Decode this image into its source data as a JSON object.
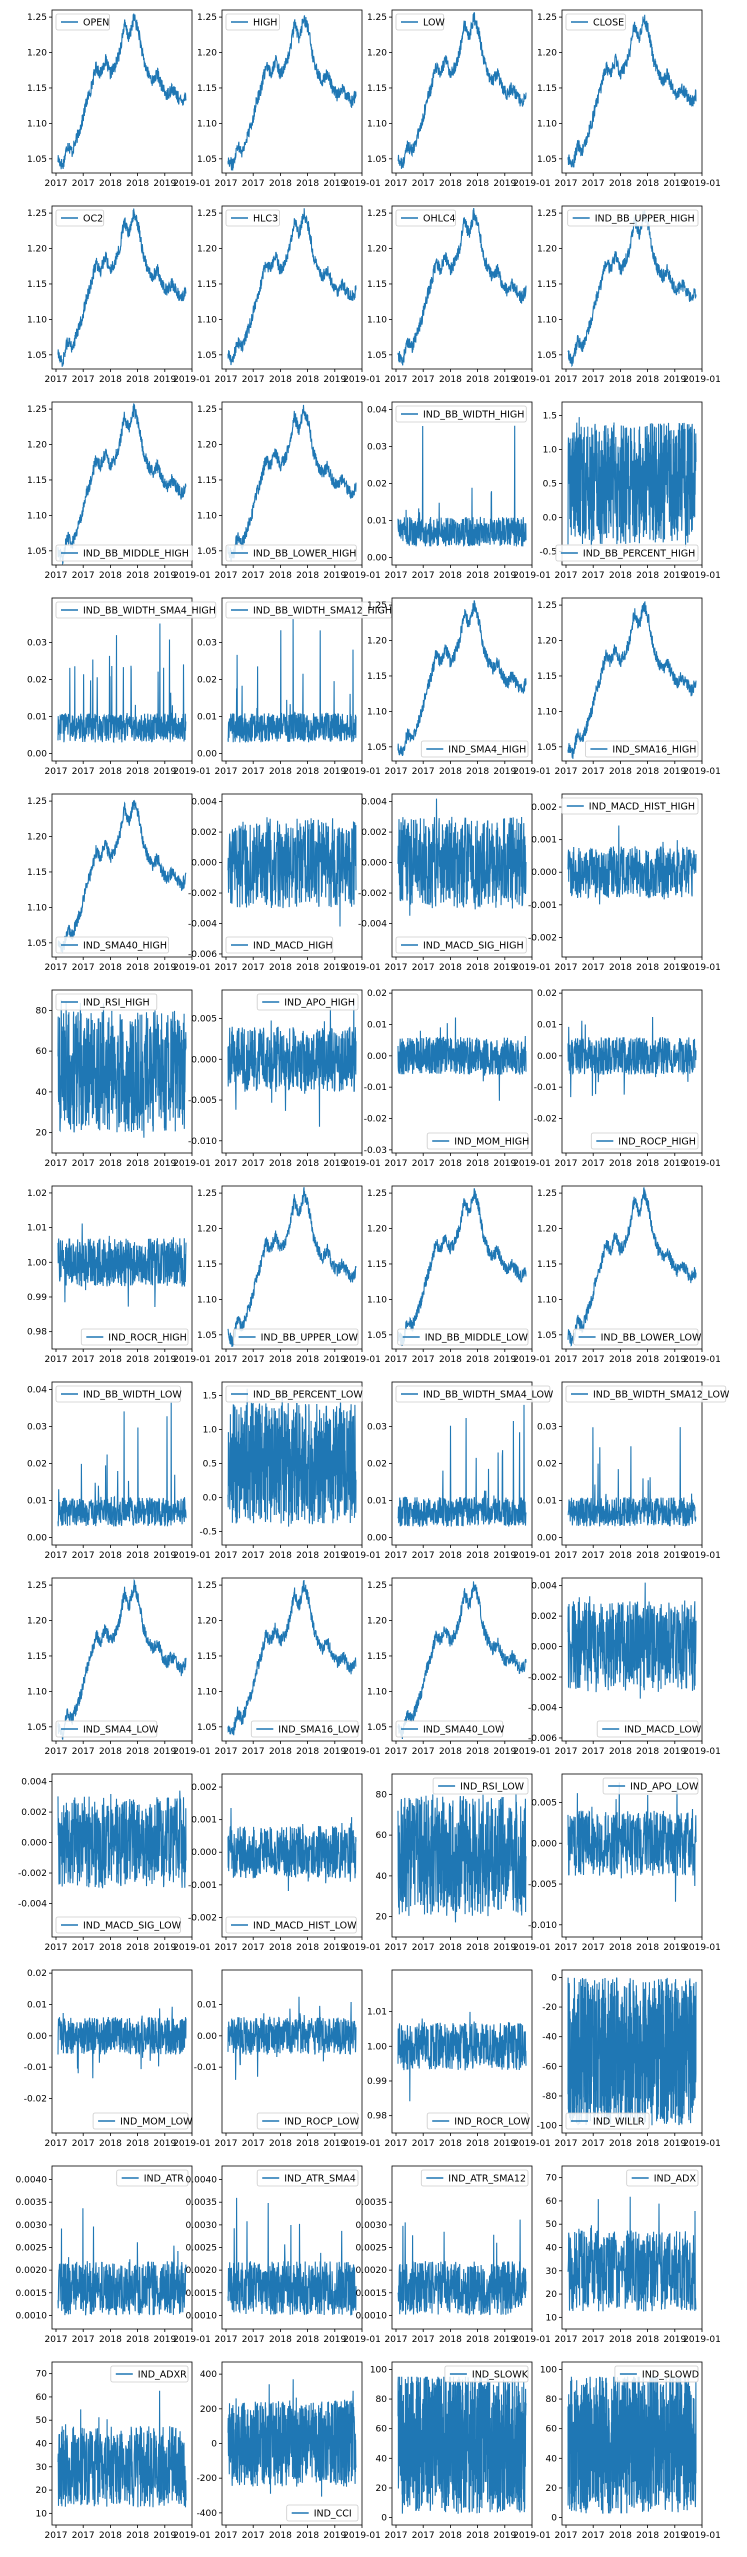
{
  "figure": {
    "grid_rows": 13,
    "grid_cols": 4,
    "line_color": "#1f77b4"
  },
  "chart_data": [
    {
      "type": "line",
      "legend": "OPEN",
      "kind": "price",
      "legend_pos": "upper-left",
      "y_ticks": [
        "1.05",
        "1.10",
        "1.15",
        "1.20",
        "1.25"
      ],
      "x_ticks": [
        "2017",
        "2017",
        "2018",
        "2018",
        "2019",
        "2019-01"
      ]
    },
    {
      "type": "line",
      "legend": "HIGH",
      "kind": "price",
      "legend_pos": "upper-left",
      "y_ticks": [
        "1.05",
        "1.10",
        "1.15",
        "1.20",
        "1.25"
      ],
      "x_ticks": [
        "2017",
        "2017",
        "2018",
        "2018",
        "2019",
        "2019-01"
      ]
    },
    {
      "type": "line",
      "legend": "LOW",
      "kind": "price",
      "legend_pos": "upper-left",
      "y_ticks": [
        "1.05",
        "1.10",
        "1.15",
        "1.20",
        "1.25"
      ],
      "x_ticks": [
        "2017",
        "2017",
        "2018",
        "2018",
        "2019",
        "2019-01"
      ]
    },
    {
      "type": "line",
      "legend": "CLOSE",
      "kind": "price",
      "legend_pos": "upper-left",
      "y_ticks": [
        "1.05",
        "1.10",
        "1.15",
        "1.20",
        "1.25"
      ],
      "x_ticks": [
        "2017",
        "2017",
        "2018",
        "2018",
        "2019",
        "2019-01"
      ]
    },
    {
      "type": "line",
      "legend": "OC2",
      "kind": "price",
      "legend_pos": "upper-left",
      "y_ticks": [
        "1.05",
        "1.10",
        "1.15",
        "1.20",
        "1.25"
      ],
      "x_ticks": [
        "2017",
        "2017",
        "2018",
        "2018",
        "2019",
        "2019-01"
      ]
    },
    {
      "type": "line",
      "legend": "HLC3",
      "kind": "price",
      "legend_pos": "upper-left",
      "y_ticks": [
        "1.05",
        "1.10",
        "1.15",
        "1.20",
        "1.25"
      ],
      "x_ticks": [
        "2017",
        "2017",
        "2018",
        "2018",
        "2019",
        "2019-01"
      ]
    },
    {
      "type": "line",
      "legend": "OHLC4",
      "kind": "price",
      "legend_pos": "upper-left",
      "y_ticks": [
        "1.05",
        "1.10",
        "1.15",
        "1.20",
        "1.25"
      ],
      "x_ticks": [
        "2017",
        "2017",
        "2018",
        "2018",
        "2019",
        "2019-01"
      ]
    },
    {
      "type": "line",
      "legend": "IND_BB_UPPER_HIGH",
      "kind": "price",
      "legend_pos": "upper-right",
      "y_ticks": [
        "1.05",
        "1.10",
        "1.15",
        "1.20",
        "1.25"
      ],
      "x_ticks": [
        "2017",
        "2017",
        "2018",
        "2018",
        "2019",
        "2019-01"
      ]
    },
    {
      "type": "line",
      "legend": "IND_BB_MIDDLE_HIGH",
      "kind": "price",
      "legend_pos": "lower-left",
      "y_ticks": [
        "1.05",
        "1.10",
        "1.15",
        "1.20",
        "1.25"
      ],
      "x_ticks": [
        "2017",
        "2017",
        "2018",
        "2018",
        "2019",
        "2019-01"
      ]
    },
    {
      "type": "line",
      "legend": "IND_BB_LOWER_HIGH",
      "kind": "price",
      "legend_pos": "lower-left",
      "y_ticks": [
        "1.05",
        "1.10",
        "1.15",
        "1.20",
        "1.25"
      ],
      "x_ticks": [
        "2017",
        "2017",
        "2018",
        "2018",
        "2019",
        "2019-01"
      ]
    },
    {
      "type": "line",
      "legend": "IND_BB_WIDTH_HIGH",
      "kind": "width",
      "legend_pos": "upper-left",
      "y_ticks": [
        "0.00",
        "0.01",
        "0.02",
        "0.03",
        "0.04"
      ],
      "x_ticks": [
        "2017",
        "2017",
        "2018",
        "2018",
        "2019",
        "2019-01"
      ]
    },
    {
      "type": "line",
      "legend": "IND_BB_PERCENT_HIGH",
      "kind": "percent",
      "legend_pos": "lower-right",
      "y_ticks": [
        "-0.5",
        "0.0",
        "0.5",
        "1.0",
        "1.5"
      ],
      "x_ticks": [
        "2017",
        "2017",
        "2018",
        "2018",
        "2019",
        "2019-01"
      ]
    },
    {
      "type": "line",
      "legend": "IND_BB_WIDTH_SMA4_HIGH",
      "kind": "width",
      "legend_pos": "upper-left",
      "y_ticks": [
        "0.00",
        "0.01",
        "0.02",
        "0.03"
      ],
      "x_ticks": [
        "2017",
        "2017",
        "2018",
        "2018",
        "2019",
        "2019-01"
      ]
    },
    {
      "type": "line",
      "legend": "IND_BB_WIDTH_SMA12_HIGH",
      "kind": "width",
      "legend_pos": "upper-left",
      "y_ticks": [
        "0.00",
        "0.01",
        "0.02",
        "0.03"
      ],
      "x_ticks": [
        "2017",
        "2017",
        "2018",
        "2018",
        "2019",
        "2019-01"
      ]
    },
    {
      "type": "line",
      "legend": "IND_SMA4_HIGH",
      "kind": "price",
      "legend_pos": "lower-right",
      "y_ticks": [
        "1.05",
        "1.10",
        "1.15",
        "1.20",
        "1.25"
      ],
      "x_ticks": [
        "2017",
        "2017",
        "2018",
        "2018",
        "2019",
        "2019-01"
      ]
    },
    {
      "type": "line",
      "legend": "IND_SMA16_HIGH",
      "kind": "price",
      "legend_pos": "lower-right",
      "y_ticks": [
        "1.05",
        "1.10",
        "1.15",
        "1.20",
        "1.25"
      ],
      "x_ticks": [
        "2017",
        "2017",
        "2018",
        "2018",
        "2019",
        "2019-01"
      ]
    },
    {
      "type": "line",
      "legend": "IND_SMA40_HIGH",
      "kind": "price",
      "legend_pos": "lower-left",
      "y_ticks": [
        "1.05",
        "1.10",
        "1.15",
        "1.20",
        "1.25"
      ],
      "x_ticks": [
        "2017",
        "2017",
        "2018",
        "2018",
        "2019",
        "2019-01"
      ]
    },
    {
      "type": "line",
      "legend": "IND_MACD_HIGH",
      "kind": "macd",
      "legend_pos": "lower-left",
      "y_ticks": [
        "-0.006",
        "-0.004",
        "-0.002",
        "0.000",
        "0.002",
        "0.004"
      ],
      "x_ticks": [
        "2017",
        "2017",
        "2018",
        "2018",
        "2019",
        "2019-01"
      ]
    },
    {
      "type": "line",
      "legend": "IND_MACD_SIG_HIGH",
      "kind": "macd",
      "legend_pos": "lower-left",
      "y_ticks": [
        "-0.004",
        "-0.002",
        "0.000",
        "0.002",
        "0.004"
      ],
      "x_ticks": [
        "2017",
        "2017",
        "2018",
        "2018",
        "2019",
        "2019-01"
      ]
    },
    {
      "type": "line",
      "legend": "IND_MACD_HIST_HIGH",
      "kind": "hist",
      "legend_pos": "upper-right",
      "y_ticks": [
        "-0.002",
        "-0.001",
        "0.000",
        "0.001",
        "0.002"
      ],
      "x_ticks": [
        "2017",
        "2017",
        "2018",
        "2018",
        "2019",
        "2019-01"
      ]
    },
    {
      "type": "line",
      "legend": "IND_RSI_HIGH",
      "kind": "rsi",
      "legend_pos": "upper-left",
      "y_ticks": [
        "20",
        "40",
        "60",
        "80"
      ],
      "x_ticks": [
        "2017",
        "2017",
        "2018",
        "2018",
        "2019",
        "2019-01"
      ]
    },
    {
      "type": "line",
      "legend": "IND_APO_HIGH",
      "kind": "apo",
      "legend_pos": "upper-right",
      "y_ticks": [
        "-0.010",
        "-0.005",
        "0.000",
        "0.005"
      ],
      "x_ticks": [
        "2017",
        "2017",
        "2018",
        "2018",
        "2019",
        "2019-01"
      ]
    },
    {
      "type": "line",
      "legend": "IND_MOM_HIGH",
      "kind": "mom",
      "legend_pos": "lower-right",
      "y_ticks": [
        "-0.03",
        "-0.02",
        "-0.01",
        "0.00",
        "0.01",
        "0.02"
      ],
      "x_ticks": [
        "2017",
        "2017",
        "2018",
        "2018",
        "2019",
        "2019-01"
      ]
    },
    {
      "type": "line",
      "legend": "IND_ROCP_HIGH",
      "kind": "mom",
      "legend_pos": "lower-right",
      "y_ticks": [
        "-0.02",
        "-0.01",
        "0.00",
        "0.01",
        "0.02"
      ],
      "x_ticks": [
        "2017",
        "2017",
        "2018",
        "2018",
        "2019",
        "2019-01"
      ]
    },
    {
      "type": "line",
      "legend": "IND_ROCR_HIGH",
      "kind": "rocr",
      "legend_pos": "lower-right",
      "y_ticks": [
        "0.98",
        "0.99",
        "1.00",
        "1.01",
        "1.02"
      ],
      "x_ticks": [
        "2017",
        "2017",
        "2018",
        "2018",
        "2019",
        "2019-01"
      ]
    },
    {
      "type": "line",
      "legend": "IND_BB_UPPER_LOW",
      "kind": "price",
      "legend_pos": "lower-right",
      "y_ticks": [
        "1.05",
        "1.10",
        "1.15",
        "1.20",
        "1.25"
      ],
      "x_ticks": [
        "2017",
        "2017",
        "2018",
        "2018",
        "2019",
        "2019-01"
      ]
    },
    {
      "type": "line",
      "legend": "IND_BB_MIDDLE_LOW",
      "kind": "price",
      "legend_pos": "lower-right",
      "y_ticks": [
        "1.05",
        "1.10",
        "1.15",
        "1.20",
        "1.25"
      ],
      "x_ticks": [
        "2017",
        "2017",
        "2018",
        "2018",
        "2019",
        "2019-01"
      ]
    },
    {
      "type": "line",
      "legend": "IND_BB_LOWER_LOW",
      "kind": "price",
      "legend_pos": "lower-right",
      "y_ticks": [
        "1.05",
        "1.10",
        "1.15",
        "1.20",
        "1.25"
      ],
      "x_ticks": [
        "2017",
        "2017",
        "2018",
        "2018",
        "2019",
        "2019-01"
      ]
    },
    {
      "type": "line",
      "legend": "IND_BB_WIDTH_LOW",
      "kind": "width",
      "legend_pos": "upper-left",
      "y_ticks": [
        "0.00",
        "0.01",
        "0.02",
        "0.03",
        "0.04"
      ],
      "x_ticks": [
        "2017",
        "2017",
        "2018",
        "2018",
        "2019",
        "2019-01"
      ]
    },
    {
      "type": "line",
      "legend": "IND_BB_PERCENT_LOW",
      "kind": "percent",
      "legend_pos": "upper-left",
      "y_ticks": [
        "-0.5",
        "0.0",
        "0.5",
        "1.0",
        "1.5"
      ],
      "x_ticks": [
        "2017",
        "2017",
        "2018",
        "2018",
        "2019",
        "2019-01"
      ]
    },
    {
      "type": "line",
      "legend": "IND_BB_WIDTH_SMA4_LOW",
      "kind": "width",
      "legend_pos": "upper-left",
      "y_ticks": [
        "0.00",
        "0.01",
        "0.02",
        "0.03"
      ],
      "x_ticks": [
        "2017",
        "2017",
        "2018",
        "2018",
        "2019",
        "2019-01"
      ]
    },
    {
      "type": "line",
      "legend": "IND_BB_WIDTH_SMA12_LOW",
      "kind": "width",
      "legend_pos": "upper-left",
      "y_ticks": [
        "0.00",
        "0.01",
        "0.02",
        "0.03"
      ],
      "x_ticks": [
        "2017",
        "2017",
        "2018",
        "2018",
        "2019",
        "2019-01"
      ]
    },
    {
      "type": "line",
      "legend": "IND_SMA4_LOW",
      "kind": "price",
      "legend_pos": "lower-left",
      "y_ticks": [
        "1.05",
        "1.10",
        "1.15",
        "1.20",
        "1.25"
      ],
      "x_ticks": [
        "2017",
        "2017",
        "2018",
        "2018",
        "2019",
        "2019-01"
      ]
    },
    {
      "type": "line",
      "legend": "IND_SMA16_LOW",
      "kind": "price",
      "legend_pos": "lower-right",
      "y_ticks": [
        "1.05",
        "1.10",
        "1.15",
        "1.20",
        "1.25"
      ],
      "x_ticks": [
        "2017",
        "2017",
        "2018",
        "2018",
        "2019",
        "2019-01"
      ]
    },
    {
      "type": "line",
      "legend": "IND_SMA40_LOW",
      "kind": "price",
      "legend_pos": "lower-left",
      "y_ticks": [
        "1.05",
        "1.10",
        "1.15",
        "1.20",
        "1.25"
      ],
      "x_ticks": [
        "2017",
        "2017",
        "2018",
        "2018",
        "2019",
        "2019-01"
      ]
    },
    {
      "type": "line",
      "legend": "IND_MACD_LOW",
      "kind": "macd",
      "legend_pos": "lower-right",
      "y_ticks": [
        "-0.006",
        "-0.004",
        "-0.002",
        "0.000",
        "0.002",
        "0.004"
      ],
      "x_ticks": [
        "2017",
        "2017",
        "2018",
        "2018",
        "2019",
        "2019-01"
      ]
    },
    {
      "type": "line",
      "legend": "IND_MACD_SIG_LOW",
      "kind": "macd",
      "legend_pos": "lower-left",
      "y_ticks": [
        "-0.004",
        "-0.002",
        "0.000",
        "0.002",
        "0.004"
      ],
      "x_ticks": [
        "2017",
        "2017",
        "2018",
        "2018",
        "2019",
        "2019-01"
      ]
    },
    {
      "type": "line",
      "legend": "IND_MACD_HIST_LOW",
      "kind": "hist",
      "legend_pos": "lower-left",
      "y_ticks": [
        "-0.002",
        "-0.001",
        "0.000",
        "0.001",
        "0.002"
      ],
      "x_ticks": [
        "2017",
        "2017",
        "2018",
        "2018",
        "2019",
        "2019-01"
      ]
    },
    {
      "type": "line",
      "legend": "IND_RSI_LOW",
      "kind": "rsi",
      "legend_pos": "upper-right",
      "y_ticks": [
        "20",
        "40",
        "60",
        "80"
      ],
      "x_ticks": [
        "2017",
        "2017",
        "2018",
        "2018",
        "2019",
        "2019-01"
      ]
    },
    {
      "type": "line",
      "legend": "IND_APO_LOW",
      "kind": "apo",
      "legend_pos": "upper-right",
      "y_ticks": [
        "-0.010",
        "-0.005",
        "0.000",
        "0.005"
      ],
      "x_ticks": [
        "2017",
        "2017",
        "2018",
        "2018",
        "2019",
        "2019-01"
      ]
    },
    {
      "type": "line",
      "legend": "IND_MOM_LOW",
      "kind": "mom",
      "legend_pos": "lower-right",
      "y_ticks": [
        "-0.02",
        "-0.01",
        "0.00",
        "0.01",
        "0.02"
      ],
      "x_ticks": [
        "2017",
        "2017",
        "2018",
        "2018",
        "2019",
        "2019-01"
      ]
    },
    {
      "type": "line",
      "legend": "IND_ROCP_LOW",
      "kind": "mom",
      "legend_pos": "lower-right",
      "y_ticks": [
        "-0.01",
        "0.00",
        "0.01"
      ],
      "x_ticks": [
        "2017",
        "2017",
        "2018",
        "2018",
        "2019",
        "2019-01"
      ]
    },
    {
      "type": "line",
      "legend": "IND_ROCR_LOW",
      "kind": "rocr",
      "legend_pos": "lower-right",
      "y_ticks": [
        "0.98",
        "0.99",
        "1.00",
        "1.01"
      ],
      "x_ticks": [
        "2017",
        "2017",
        "2018",
        "2018",
        "2019",
        "2019-01"
      ]
    },
    {
      "type": "line",
      "legend": "IND_WILLR",
      "kind": "willr",
      "legend_pos": "lower-left",
      "y_ticks": [
        "-100",
        "-80",
        "-60",
        "-40",
        "-20",
        "0"
      ],
      "x_ticks": [
        "2017",
        "2017",
        "2018",
        "2018",
        "2019",
        "2019-01"
      ]
    },
    {
      "type": "line",
      "legend": "IND_ATR",
      "kind": "atr",
      "legend_pos": "upper-right",
      "y_ticks": [
        "0.0010",
        "0.0015",
        "0.0020",
        "0.0025",
        "0.0030",
        "0.0035",
        "0.0040"
      ],
      "x_ticks": [
        "2017",
        "2017",
        "2018",
        "2018",
        "2019",
        "2019-01"
      ]
    },
    {
      "type": "line",
      "legend": "IND_ATR_SMA4",
      "kind": "atr",
      "legend_pos": "upper-right",
      "y_ticks": [
        "0.0010",
        "0.0015",
        "0.0020",
        "0.0025",
        "0.0030",
        "0.0035",
        "0.0040"
      ],
      "x_ticks": [
        "2017",
        "2017",
        "2018",
        "2018",
        "2019",
        "2019-01"
      ]
    },
    {
      "type": "line",
      "legend": "IND_ATR_SMA12",
      "kind": "atr",
      "legend_pos": "upper-right",
      "y_ticks": [
        "0.0010",
        "0.0015",
        "0.0020",
        "0.0025",
        "0.0030",
        "0.0035"
      ],
      "x_ticks": [
        "2017",
        "2017",
        "2018",
        "2018",
        "2019",
        "2019-01"
      ]
    },
    {
      "type": "line",
      "legend": "IND_ADX",
      "kind": "adx",
      "legend_pos": "upper-right",
      "y_ticks": [
        "10",
        "20",
        "30",
        "40",
        "50",
        "60",
        "70"
      ],
      "x_ticks": [
        "2017",
        "2017",
        "2018",
        "2018",
        "2019",
        "2019-01"
      ]
    },
    {
      "type": "line",
      "legend": "IND_ADXR",
      "kind": "adx",
      "legend_pos": "upper-right",
      "y_ticks": [
        "10",
        "20",
        "30",
        "40",
        "50",
        "60",
        "70"
      ],
      "x_ticks": [
        "2017",
        "2017",
        "2018",
        "2018",
        "2019",
        "2019-01"
      ]
    },
    {
      "type": "line",
      "legend": "IND_CCI",
      "kind": "cci",
      "legend_pos": "lower-right",
      "y_ticks": [
        "-400",
        "-200",
        "0",
        "200",
        "400"
      ],
      "x_ticks": [
        "2017",
        "2017",
        "2018",
        "2018",
        "2019",
        "2019-01"
      ]
    },
    {
      "type": "line",
      "legend": "IND_SLOWK",
      "kind": "stoch",
      "legend_pos": "upper-right",
      "y_ticks": [
        "0",
        "20",
        "40",
        "60",
        "80",
        "100"
      ],
      "x_ticks": [
        "2017",
        "2017",
        "2018",
        "2018",
        "2019",
        "2019-01"
      ]
    },
    {
      "type": "line",
      "legend": "IND_SLOWD",
      "kind": "stoch",
      "legend_pos": "upper-right",
      "y_ticks": [
        "0",
        "20",
        "40",
        "60",
        "80",
        "100"
      ],
      "x_ticks": [
        "2017",
        "2017",
        "2018",
        "2018",
        "2019",
        "2019-01"
      ]
    }
  ]
}
